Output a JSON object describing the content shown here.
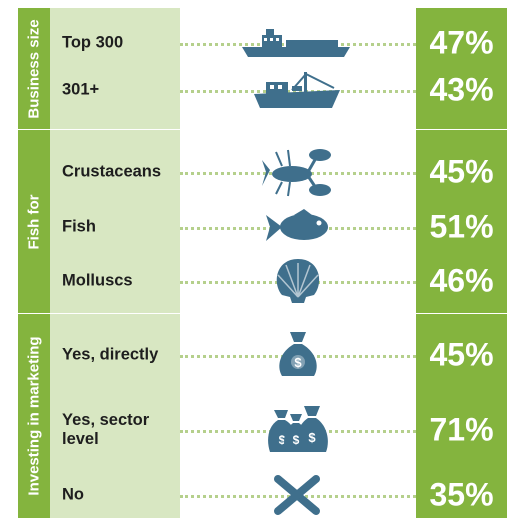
{
  "chart_data": {
    "type": "table",
    "groups": [
      {
        "name": "Business size",
        "rows": [
          {
            "label": "Top 300",
            "icon": "large-ship-icon",
            "value": 47,
            "display": "47%"
          },
          {
            "label": "301+",
            "icon": "fishing-boat-icon",
            "value": 43,
            "display": "43%"
          }
        ]
      },
      {
        "name": "Fish for",
        "rows": [
          {
            "label": "Crustaceans",
            "icon": "lobster-icon",
            "value": 45,
            "display": "45%"
          },
          {
            "label": "Fish",
            "icon": "fish-icon",
            "value": 51,
            "display": "51%"
          },
          {
            "label": "Molluscs",
            "icon": "shell-icon",
            "value": 46,
            "display": "46%"
          }
        ]
      },
      {
        "name": "Investing in marketing",
        "rows": [
          {
            "label": "Yes, directly",
            "icon": "money-bag-icon",
            "value": 45,
            "display": "45%"
          },
          {
            "label": "Yes, sector level",
            "icon": "money-bags-icon",
            "value": 71,
            "display": "71%"
          },
          {
            "label": "No",
            "icon": "cross-icon",
            "value": 35,
            "display": "35%"
          }
        ]
      }
    ]
  },
  "colors": {
    "accent_green": "#84b43e",
    "label_panel": "#d8e7c2",
    "dots": "#b5d08c",
    "icon_blue": "#3f6f8c"
  }
}
